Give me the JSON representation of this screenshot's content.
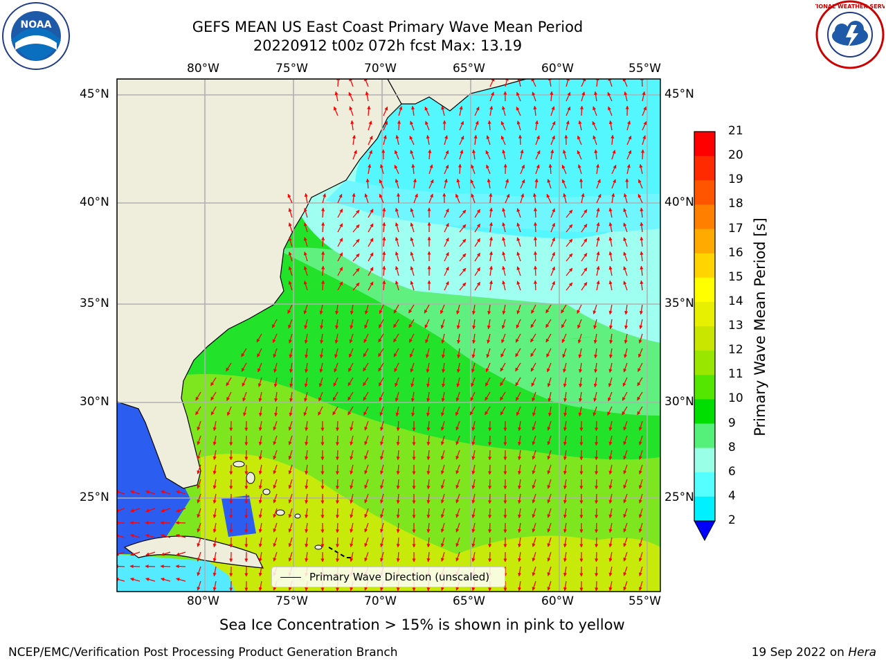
{
  "title_line1": "GEFS MEAN US East Coast Primary Wave Mean Period",
  "title_line2": "20220912 t00z 072h fcst   Max: 13.19",
  "lon_labels": [
    "80°W",
    "75°W",
    "70°W",
    "65°W",
    "60°W",
    "55°W"
  ],
  "lat_labels": [
    "45°N",
    "40°N",
    "35°N",
    "30°N",
    "25°N"
  ],
  "legend_label": "Primary Wave Direction (unscaled)",
  "colorbar": {
    "label": "Primary Wave Mean Period [s]",
    "ticks": [
      "21",
      "20",
      "19",
      "18",
      "17",
      "16",
      "15",
      "14",
      "13",
      "12",
      "11",
      "10",
      "9",
      "8",
      "6",
      "4",
      "2"
    ],
    "colors": [
      "#ff0000",
      "#ff2a00",
      "#ff5500",
      "#ff7f00",
      "#ffaa00",
      "#ffd400",
      "#ffff00",
      "#e6f000",
      "#c8e600",
      "#99e600",
      "#55e600",
      "#00dd00",
      "#55f07a",
      "#99ffe6",
      "#55ffff",
      "#00f0ff",
      "#00aaff",
      "#0055ff"
    ]
  },
  "subtitle": "Sea Ice Concentration > 15% is shown in pink to yellow",
  "footer_left": "NCEP/EMC/Verification Post Processing Product Generation Branch",
  "footer_right_prefix": "19 Sep 2022 on ",
  "footer_right_host": "Hera",
  "logos": {
    "noaa": "NOAA",
    "nws": "NATIONAL WEATHER SERVICE"
  },
  "colors": {
    "land": "#efeddc",
    "arrow": "#ff0000",
    "grid": "#b0b0b0"
  }
}
